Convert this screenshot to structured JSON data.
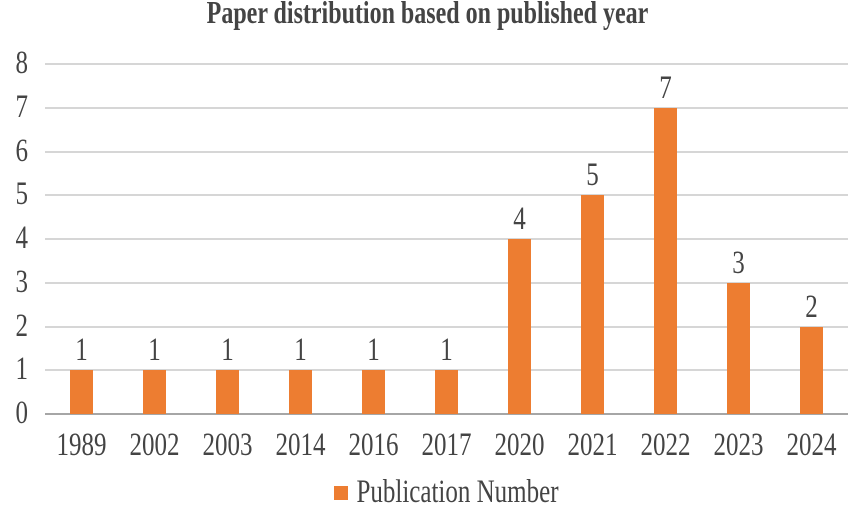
{
  "chart_data": {
    "type": "bar",
    "title": "Paper distribution based on published year",
    "categories": [
      "1989",
      "2002",
      "2003",
      "2014",
      "2016",
      "2017",
      "2020",
      "2021",
      "2022",
      "2023",
      "2024"
    ],
    "series": [
      {
        "name": "Publication Number",
        "values": [
          1,
          1,
          1,
          1,
          1,
          1,
          4,
          5,
          7,
          3,
          2
        ]
      }
    ],
    "xlabel": "",
    "ylabel": "",
    "ylim": [
      0,
      8
    ],
    "yticks": [
      0,
      1,
      2,
      3,
      4,
      5,
      6,
      7,
      8
    ],
    "grid": true,
    "data_labels_shown": true,
    "legend_position": "bottom-center",
    "legend_swatch": "square-icon",
    "colors": {
      "bar": "#ED7D31",
      "text": "#444444",
      "gridline": "#D6D6D6",
      "axis_line": "#A6A6A6",
      "background": "#FFFFFF"
    }
  }
}
